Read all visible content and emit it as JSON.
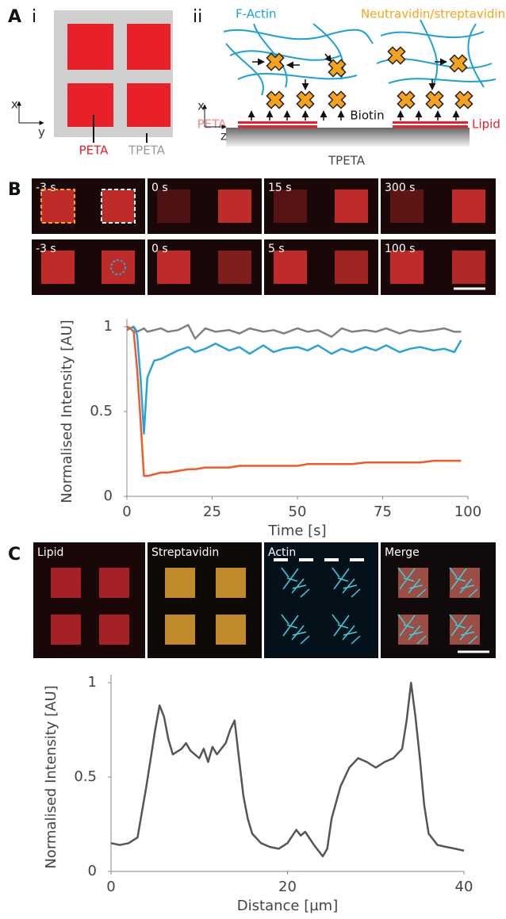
{
  "panel_a": {
    "letter": "A",
    "sub_i": "i",
    "sub_ii": "ii",
    "axis_x_i": "x",
    "axis_y_i": "y",
    "peta_i": "PETA",
    "tpeta_i": "TPETA",
    "axis_x_ii": "x",
    "axis_z_ii": "z",
    "f_actin": "F-Actin",
    "neutravidin": "Neutravidin/streptavidin",
    "biotin": "Biotin",
    "peta_ii": "PETA",
    "lipid": "Lipid",
    "tpeta_ii": "TPETA"
  },
  "panel_b": {
    "letter": "B",
    "row1": [
      "-3 s",
      "0 s",
      "15 s",
      "300 s"
    ],
    "row2": [
      "-3 s",
      "0 s",
      "5 s",
      "100 s"
    ]
  },
  "panel_c": {
    "letter": "C",
    "channels": [
      "Lipid",
      "Streptavidin",
      "Actin",
      "Merge"
    ]
  },
  "chart_data": [
    {
      "type": "line",
      "x_label": "Time [s]",
      "y_label": "Normalised Intensity [AU]",
      "x": [
        0,
        1,
        2,
        3,
        4,
        5,
        6,
        8,
        10,
        12,
        15,
        18,
        20,
        23,
        26,
        30,
        33,
        36,
        40,
        43,
        46,
        50,
        53,
        56,
        60,
        63,
        66,
        70,
        73,
        76,
        80,
        83,
        86,
        90,
        93,
        96,
        98
      ],
      "series": [
        {
          "color": "#808080",
          "values": [
            0.98,
            0.99,
            1.0,
            0.97,
            0.98,
            0.99,
            0.97,
            0.98,
            0.99,
            0.97,
            0.98,
            1.01,
            0.93,
            0.99,
            0.97,
            0.98,
            0.96,
            0.99,
            0.97,
            0.98,
            0.96,
            0.99,
            0.97,
            0.98,
            0.94,
            0.99,
            0.97,
            0.98,
            0.97,
            0.99,
            0.96,
            0.98,
            0.97,
            0.98,
            0.99,
            0.97,
            0.97
          ]
        },
        {
          "color": "#29a3d6",
          "values": [
            1.0,
            0.99,
            1.0,
            0.95,
            0.7,
            0.37,
            0.7,
            0.8,
            0.81,
            0.83,
            0.86,
            0.88,
            0.85,
            0.87,
            0.9,
            0.86,
            0.88,
            0.84,
            0.89,
            0.85,
            0.87,
            0.88,
            0.86,
            0.89,
            0.84,
            0.87,
            0.85,
            0.88,
            0.86,
            0.89,
            0.85,
            0.87,
            0.88,
            0.86,
            0.87,
            0.85,
            0.92
          ]
        },
        {
          "color": "#ef5a28",
          "values": [
            1.0,
            0.99,
            0.97,
            0.75,
            0.45,
            0.12,
            0.12,
            0.13,
            0.14,
            0.14,
            0.15,
            0.16,
            0.16,
            0.17,
            0.17,
            0.17,
            0.18,
            0.18,
            0.18,
            0.18,
            0.18,
            0.18,
            0.19,
            0.19,
            0.19,
            0.19,
            0.19,
            0.2,
            0.2,
            0.2,
            0.2,
            0.2,
            0.2,
            0.21,
            0.21,
            0.21,
            0.21
          ]
        }
      ],
      "xlim": [
        0,
        100
      ],
      "xticks": [
        0,
        25,
        50,
        75,
        100
      ],
      "ylim": [
        0,
        1
      ],
      "yticks": [
        0,
        0.5,
        1
      ]
    },
    {
      "type": "line",
      "x_label": "Distance [µm]",
      "y_label": "Normalised Intensity [AU]",
      "x": [
        0,
        1,
        2,
        3,
        4,
        4.5,
        5,
        5.5,
        6,
        6.5,
        7,
        8,
        8.5,
        9,
        10,
        10.5,
        11,
        11.5,
        12,
        13,
        13.5,
        14,
        14.5,
        15,
        15.5,
        16,
        17,
        18,
        19,
        20,
        21,
        21.5,
        22,
        23,
        24,
        24.5,
        25,
        26,
        27,
        28,
        29,
        30,
        31,
        32,
        33,
        33.5,
        34,
        34.5,
        35,
        35.5,
        36,
        37,
        38,
        39,
        40
      ],
      "series": [
        {
          "color": "#555555",
          "values": [
            0.15,
            0.14,
            0.15,
            0.18,
            0.45,
            0.6,
            0.75,
            0.88,
            0.82,
            0.7,
            0.62,
            0.65,
            0.68,
            0.64,
            0.6,
            0.65,
            0.58,
            0.66,
            0.62,
            0.68,
            0.75,
            0.8,
            0.6,
            0.4,
            0.28,
            0.2,
            0.15,
            0.13,
            0.12,
            0.15,
            0.22,
            0.19,
            0.21,
            0.14,
            0.08,
            0.12,
            0.28,
            0.45,
            0.55,
            0.6,
            0.58,
            0.55,
            0.58,
            0.6,
            0.65,
            0.8,
            1.0,
            0.82,
            0.6,
            0.35,
            0.2,
            0.14,
            0.13,
            0.12,
            0.11
          ]
        }
      ],
      "xlim": [
        0,
        40
      ],
      "xticks": [
        0,
        20,
        40
      ],
      "ylim": [
        0,
        1
      ],
      "yticks": [
        0,
        0.5,
        1
      ]
    }
  ]
}
